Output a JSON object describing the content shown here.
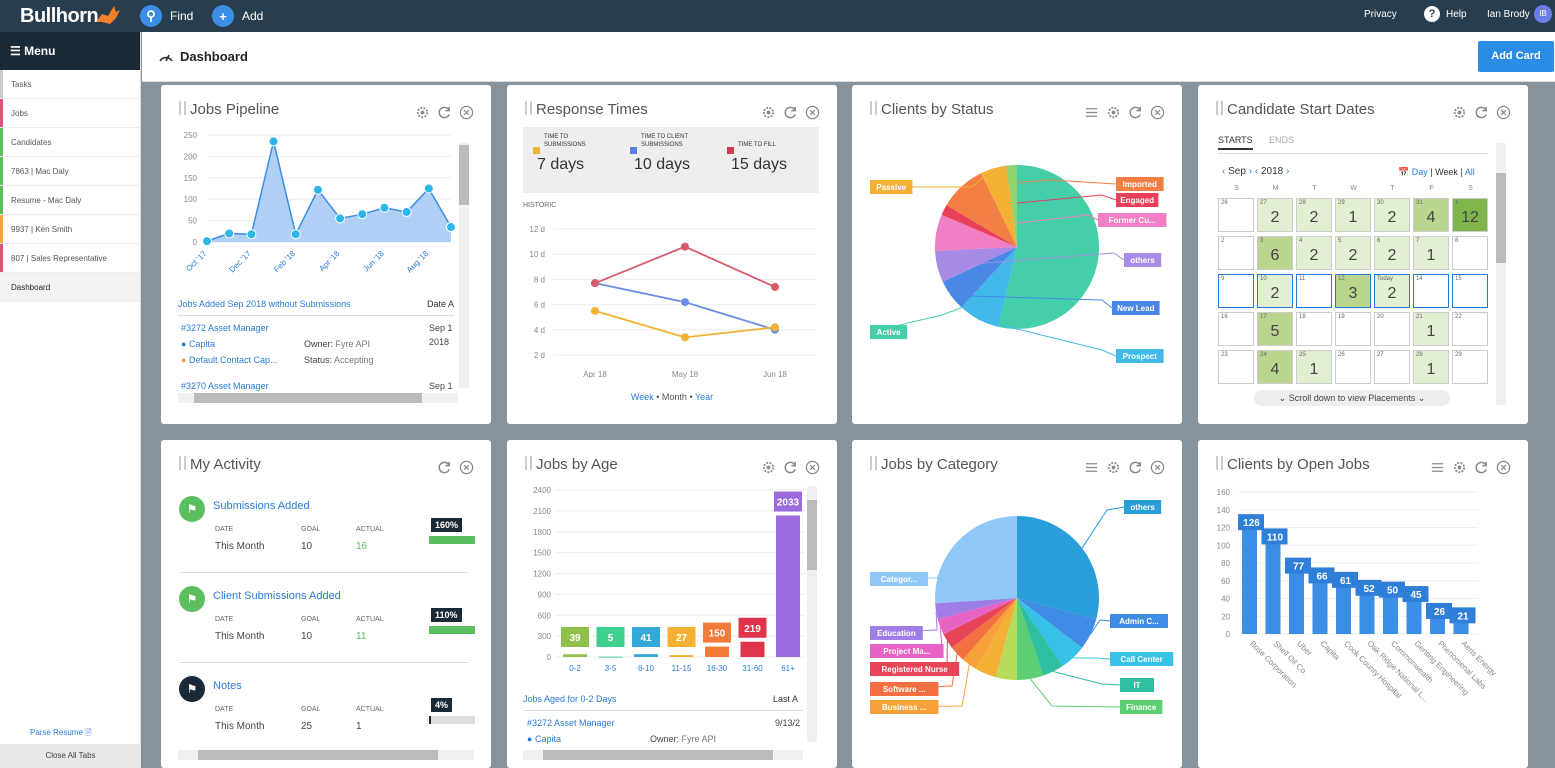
{
  "topbar": {
    "logo": "Bullhorn",
    "find": "Find",
    "add": "Add",
    "privacy": "Privacy",
    "help": "Help",
    "user": "Ian Brody",
    "avatar": "IB"
  },
  "sidebar": {
    "menu": "Menu",
    "items": [
      {
        "label": "Tasks",
        "color": "#ccc"
      },
      {
        "label": "Jobs",
        "color": "#e0507a"
      },
      {
        "label": "Candidates",
        "color": "#5bbf5f"
      },
      {
        "label": "7863 | Mac Daly",
        "color": "#5bbf5f"
      },
      {
        "label": "Resume - Mac Daly",
        "color": "#5bbf5f"
      },
      {
        "label": "9937 | Ken Smith",
        "color": "#f2a33a"
      },
      {
        "label": "807 | Sales Representative",
        "color": "#e0507a"
      },
      {
        "label": "Dashboard",
        "color": ""
      }
    ],
    "parse": "Parse Resume",
    "close_all": "Close All Tabs"
  },
  "header": {
    "title": "Dashboard",
    "add_card": "Add Card"
  },
  "jobs_pipeline": {
    "title": "Jobs Pipeline",
    "chart_data": {
      "type": "area",
      "x": [
        "Oct '17",
        "Nov '17",
        "Dec '17",
        "Jan '18",
        "Feb '18",
        "Mar '18",
        "Apr '18",
        "May '18",
        "Jun '18",
        "Jul '18",
        "Aug '18",
        "Sep '18"
      ],
      "x_labels": [
        "Oct '17",
        "Dec '17",
        "Feb '18",
        "Apr '18",
        "Jun '18",
        "Aug '18"
      ],
      "values": [
        2,
        20,
        18,
        235,
        18,
        122,
        55,
        65,
        80,
        70,
        125,
        35
      ],
      "y_ticks": [
        "250",
        "200",
        "150",
        "100",
        "50",
        "0"
      ],
      "ylim": [
        0,
        250
      ]
    },
    "subtitle": "Jobs Added Sep 2018 without Submissions",
    "date_col": "Date A",
    "rows": [
      {
        "title": "#3272 Asset Manager",
        "company": "Capita",
        "contact": "Default Contact Cap...",
        "owner_l": "Owner:",
        "owner": "Fyre API",
        "status_l": "Status:",
        "status": "Accepting",
        "date": "Sep 1",
        "date2": "2018"
      },
      {
        "title": "#3270 Asset Manager",
        "date": "Sep 1"
      }
    ]
  },
  "response_times": {
    "title": "Response Times",
    "stats": [
      {
        "label": "TIME TO SUBMISSIONS",
        "value": "7 days",
        "color": "#f2b134"
      },
      {
        "label": "TIME TO CLIENT SUBMISSIONS",
        "value": "10 days",
        "color": "#5b7fe6"
      },
      {
        "label": "TIME TO FILL",
        "value": "15 days",
        "color": "#d03c4e"
      }
    ],
    "historic": "HISTORIC",
    "chart_data": {
      "type": "line",
      "x": [
        "Apr 18",
        "May 18",
        "Jun 18"
      ],
      "y_ticks": [
        "12 d",
        "10 d",
        "8 d",
        "6 d",
        "4 d",
        "2 d"
      ],
      "ylim": [
        2,
        12
      ],
      "series": [
        {
          "values": [
            7.7,
            6.2,
            4.0
          ],
          "color": "#6b8de8"
        },
        {
          "values": [
            7.7,
            10.6,
            7.4
          ],
          "color": "#d75b6a"
        },
        {
          "values": [
            5.5,
            3.4,
            4.2
          ],
          "color": "#f2b134"
        }
      ]
    },
    "toggle": {
      "week": "Week",
      "month": "Month",
      "year": "Year",
      "sep": "•"
    }
  },
  "clients_status": {
    "title": "Clients by Status",
    "chart_data": {
      "type": "pie",
      "slices": [
        {
          "label": "Active",
          "value": 52,
          "color": "#45cfa9"
        },
        {
          "label": "Prospect",
          "value": 8,
          "color": "#42b9e8"
        },
        {
          "label": "New Lead",
          "value": 6,
          "color": "#4a88e6"
        },
        {
          "label": "others",
          "value": 6,
          "color": "#a78be6"
        },
        {
          "label": "Former Cu...",
          "value": 7,
          "color": "#f07fc4"
        },
        {
          "label": "Engaged",
          "value": 2,
          "color": "#e8405a"
        },
        {
          "label": "Imported",
          "value": 9,
          "color": "#f47f45"
        },
        {
          "label": "Passive",
          "value": 5,
          "color": "#f2b134"
        },
        {
          "label": "",
          "value": 2,
          "color": "#8fd36a"
        }
      ]
    }
  },
  "candidate_start": {
    "title": "Candidate Start Dates",
    "tabs": [
      "STARTS",
      "ENDS"
    ],
    "month": "Sep",
    "year": "2018",
    "views": {
      "day": "Day",
      "week": "Week",
      "all": "All"
    },
    "dow": [
      "S",
      "M",
      "T",
      "W",
      "T",
      "F",
      "S"
    ],
    "weeks": [
      [
        {
          "d": "26",
          "v": ""
        },
        {
          "d": "27",
          "v": "2"
        },
        {
          "d": "28",
          "v": "2"
        },
        {
          "d": "29",
          "v": "1"
        },
        {
          "d": "30",
          "v": "2"
        },
        {
          "d": "31",
          "v": "4"
        },
        {
          "d": "1",
          "v": "12"
        }
      ],
      [
        {
          "d": "2",
          "v": ""
        },
        {
          "d": "3",
          "v": "6"
        },
        {
          "d": "4",
          "v": "2"
        },
        {
          "d": "5",
          "v": "2"
        },
        {
          "d": "6",
          "v": "2"
        },
        {
          "d": "7",
          "v": "1"
        },
        {
          "d": "8",
          "v": ""
        }
      ],
      [
        {
          "d": "9",
          "v": ""
        },
        {
          "d": "10",
          "v": "2"
        },
        {
          "d": "11",
          "v": ""
        },
        {
          "d": "12",
          "v": "3"
        },
        {
          "d": "Today",
          "v": "2"
        },
        {
          "d": "14",
          "v": ""
        },
        {
          "d": "15",
          "v": ""
        }
      ],
      [
        {
          "d": "16",
          "v": ""
        },
        {
          "d": "17",
          "v": "5"
        },
        {
          "d": "18",
          "v": ""
        },
        {
          "d": "19",
          "v": ""
        },
        {
          "d": "20",
          "v": ""
        },
        {
          "d": "21",
          "v": "1"
        },
        {
          "d": "22",
          "v": ""
        }
      ],
      [
        {
          "d": "23",
          "v": ""
        },
        {
          "d": "24",
          "v": "4"
        },
        {
          "d": "25",
          "v": "1"
        },
        {
          "d": "26",
          "v": ""
        },
        {
          "d": "27",
          "v": ""
        },
        {
          "d": "28",
          "v": "1"
        },
        {
          "d": "29",
          "v": ""
        }
      ]
    ],
    "scroll_note": "Scroll down to view Placements"
  },
  "my_activity": {
    "title": "My Activity",
    "items": [
      {
        "name": "Submissions Added",
        "date_l": "DATE",
        "goal_l": "GOAL",
        "actual_l": "ACTUAL",
        "date": "This Month",
        "goal": "10",
        "actual": "16",
        "pct": "160%",
        "fill": 1.0,
        "color": "#5bbf5f"
      },
      {
        "name": "Client Submissions Added",
        "date_l": "DATE",
        "goal_l": "GOAL",
        "actual_l": "ACTUAL",
        "date": "This Month",
        "goal": "10",
        "actual": "11",
        "pct": "110%",
        "fill": 1.0,
        "color": "#5bbf5f"
      },
      {
        "name": "Notes",
        "date_l": "DATE",
        "goal_l": "GOAL",
        "actual_l": "ACTUAL",
        "date": "This Month",
        "goal": "25",
        "actual": "1",
        "pct": "4%",
        "fill": 0.04,
        "color": "#1a2936"
      }
    ]
  },
  "jobs_by_age": {
    "title": "Jobs by Age",
    "chart_data": {
      "type": "bar",
      "categories": [
        "0-2",
        "3-5",
        "6-10",
        "11-15",
        "16-30",
        "31-60",
        "61+"
      ],
      "values": [
        39,
        5,
        41,
        27,
        150,
        219,
        2033
      ],
      "colors": [
        "#8fc04a",
        "#3fcf8e",
        "#34a9d8",
        "#f2b134",
        "#f47a3a",
        "#e0344a",
        "#9b6be0"
      ],
      "y_ticks": [
        "2400",
        "2100",
        "1800",
        "1500",
        "1200",
        "900",
        "600",
        "300",
        "0"
      ],
      "ylim": [
        0,
        2400
      ]
    },
    "subtitle": "Jobs Aged for 0-2 Days",
    "last_col": "Last A",
    "row": {
      "title": "#3272 Asset Manager",
      "company": "Capita",
      "owner_l": "Owner:",
      "owner": "Fyre API",
      "date": "9/13/2"
    }
  },
  "jobs_by_category": {
    "title": "Jobs by Category",
    "chart_data": {
      "type": "pie",
      "slices": [
        {
          "label": "others",
          "value": 28,
          "color": "#2a9ed8"
        },
        {
          "label": "Admin C...",
          "value": 6,
          "color": "#3f8ce6"
        },
        {
          "label": "Call Center",
          "value": 5,
          "color": "#38c2e8"
        },
        {
          "label": "IT",
          "value": 4,
          "color": "#2fbfa0"
        },
        {
          "label": "Finance",
          "value": 5,
          "color": "#5ccf74"
        },
        {
          "label": "",
          "value": 4,
          "color": "#b7db5a"
        },
        {
          "label": "",
          "value": 4,
          "color": "#f2b134"
        },
        {
          "label": "Business ...",
          "value": 3,
          "color": "#f7a13a"
        },
        {
          "label": "Software ...",
          "value": 3,
          "color": "#f47040"
        },
        {
          "label": "Registered Nurse",
          "value": 3,
          "color": "#e84458"
        },
        {
          "label": "Project Ma...",
          "value": 3,
          "color": "#e864c4"
        },
        {
          "label": "Education",
          "value": 3,
          "color": "#a07ee8"
        },
        {
          "label": "Categor...",
          "value": 25,
          "color": "#8fc7f7"
        }
      ]
    }
  },
  "clients_open_jobs": {
    "title": "Clients by Open Jobs",
    "chart_data": {
      "type": "bar",
      "categories": [
        "Bose Corporation",
        "Shell Oil Co.",
        "Uber",
        "Capita",
        "Cook County Hospital",
        "Oak Ridge National L...",
        "Commonwealth",
        "Genting Engineering",
        "Phenomenal Labs",
        "Aeris Energy"
      ],
      "values": [
        126,
        110,
        77,
        66,
        61,
        52,
        50,
        45,
        26,
        21
      ],
      "color": "#3a8ee6",
      "y_ticks": [
        "160",
        "140",
        "120",
        "100",
        "80",
        "60",
        "40",
        "20",
        "0"
      ],
      "ylim": [
        0,
        160
      ]
    }
  }
}
